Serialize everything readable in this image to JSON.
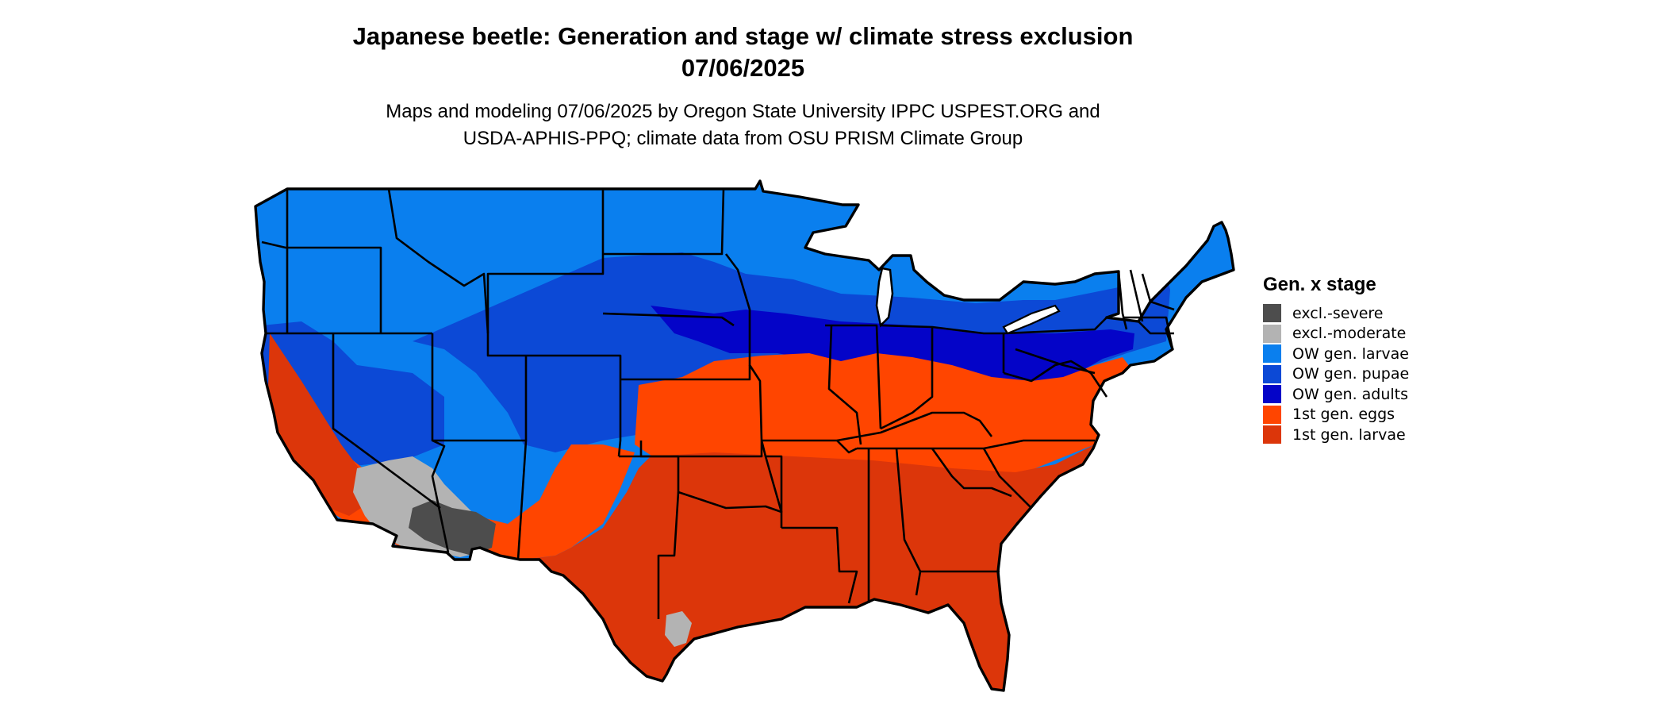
{
  "title": {
    "line1": "Japanese beetle: Generation and stage w/ climate stress exclusion",
    "line2": "07/06/2025"
  },
  "subtitle": {
    "line1": "Maps and modeling 07/06/2025 by Oregon State University IPPC USPEST.ORG and",
    "line2": "USDA-APHIS-PPQ; climate data from OSU PRISM Climate Group"
  },
  "legend": {
    "title": "Gen. x stage",
    "items": [
      {
        "label": "excl.-severe",
        "color": "#4d4d4d"
      },
      {
        "label": "excl.-moderate",
        "color": "#b3b3b3"
      },
      {
        "label": "OW gen. larvae",
        "color": "#0a7fee"
      },
      {
        "label": "OW gen. pupae",
        "color": "#0c49d6"
      },
      {
        "label": "OW gen. adults",
        "color": "#0404c8"
      },
      {
        "label": "1st gen. eggs",
        "color": "#ff4500"
      },
      {
        "label": "1st gen. larvae",
        "color": "#dc360a"
      }
    ]
  }
}
